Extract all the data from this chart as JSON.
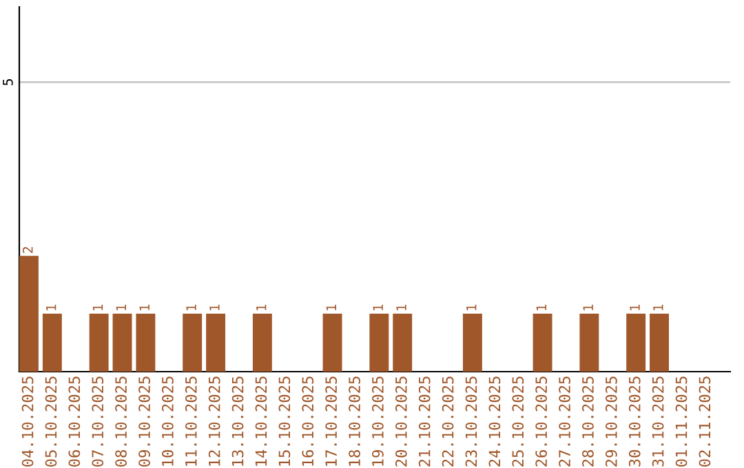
{
  "chart_data": {
    "type": "bar",
    "categories": [
      "04.10.2025",
      "05.10.2025",
      "06.10.2025",
      "07.10.2025",
      "08.10.2025",
      "09.10.2025",
      "10.10.2025",
      "11.10.2025",
      "12.10.2025",
      "13.10.2025",
      "14.10.2025",
      "15.10.2025",
      "16.10.2025",
      "17.10.2025",
      "18.10.2025",
      "19.10.2025",
      "20.10.2025",
      "21.10.2025",
      "22.10.2025",
      "23.10.2025",
      "24.10.2025",
      "25.10.2025",
      "26.10.2025",
      "27.10.2025",
      "28.10.2025",
      "29.10.2025",
      "30.10.2025",
      "31.10.2025",
      "01.11.2025",
      "02.11.2025"
    ],
    "values": [
      2,
      1,
      0,
      1,
      1,
      1,
      0,
      1,
      1,
      0,
      1,
      0,
      0,
      1,
      0,
      1,
      1,
      0,
      0,
      1,
      0,
      0,
      1,
      0,
      1,
      0,
      1,
      1,
      0,
      0
    ],
    "value_labels": [
      "2",
      "1",
      null,
      "1",
      "1",
      "1",
      null,
      "1",
      "1",
      null,
      "1",
      null,
      null,
      "1",
      null,
      "1",
      "1",
      null,
      null,
      "1",
      null,
      null,
      "1",
      null,
      "1",
      null,
      "1",
      "1",
      null,
      null
    ],
    "color": "#a0572a",
    "ylim": [
      0,
      6.3
    ],
    "yticks": [
      5
    ],
    "grid": "y"
  }
}
